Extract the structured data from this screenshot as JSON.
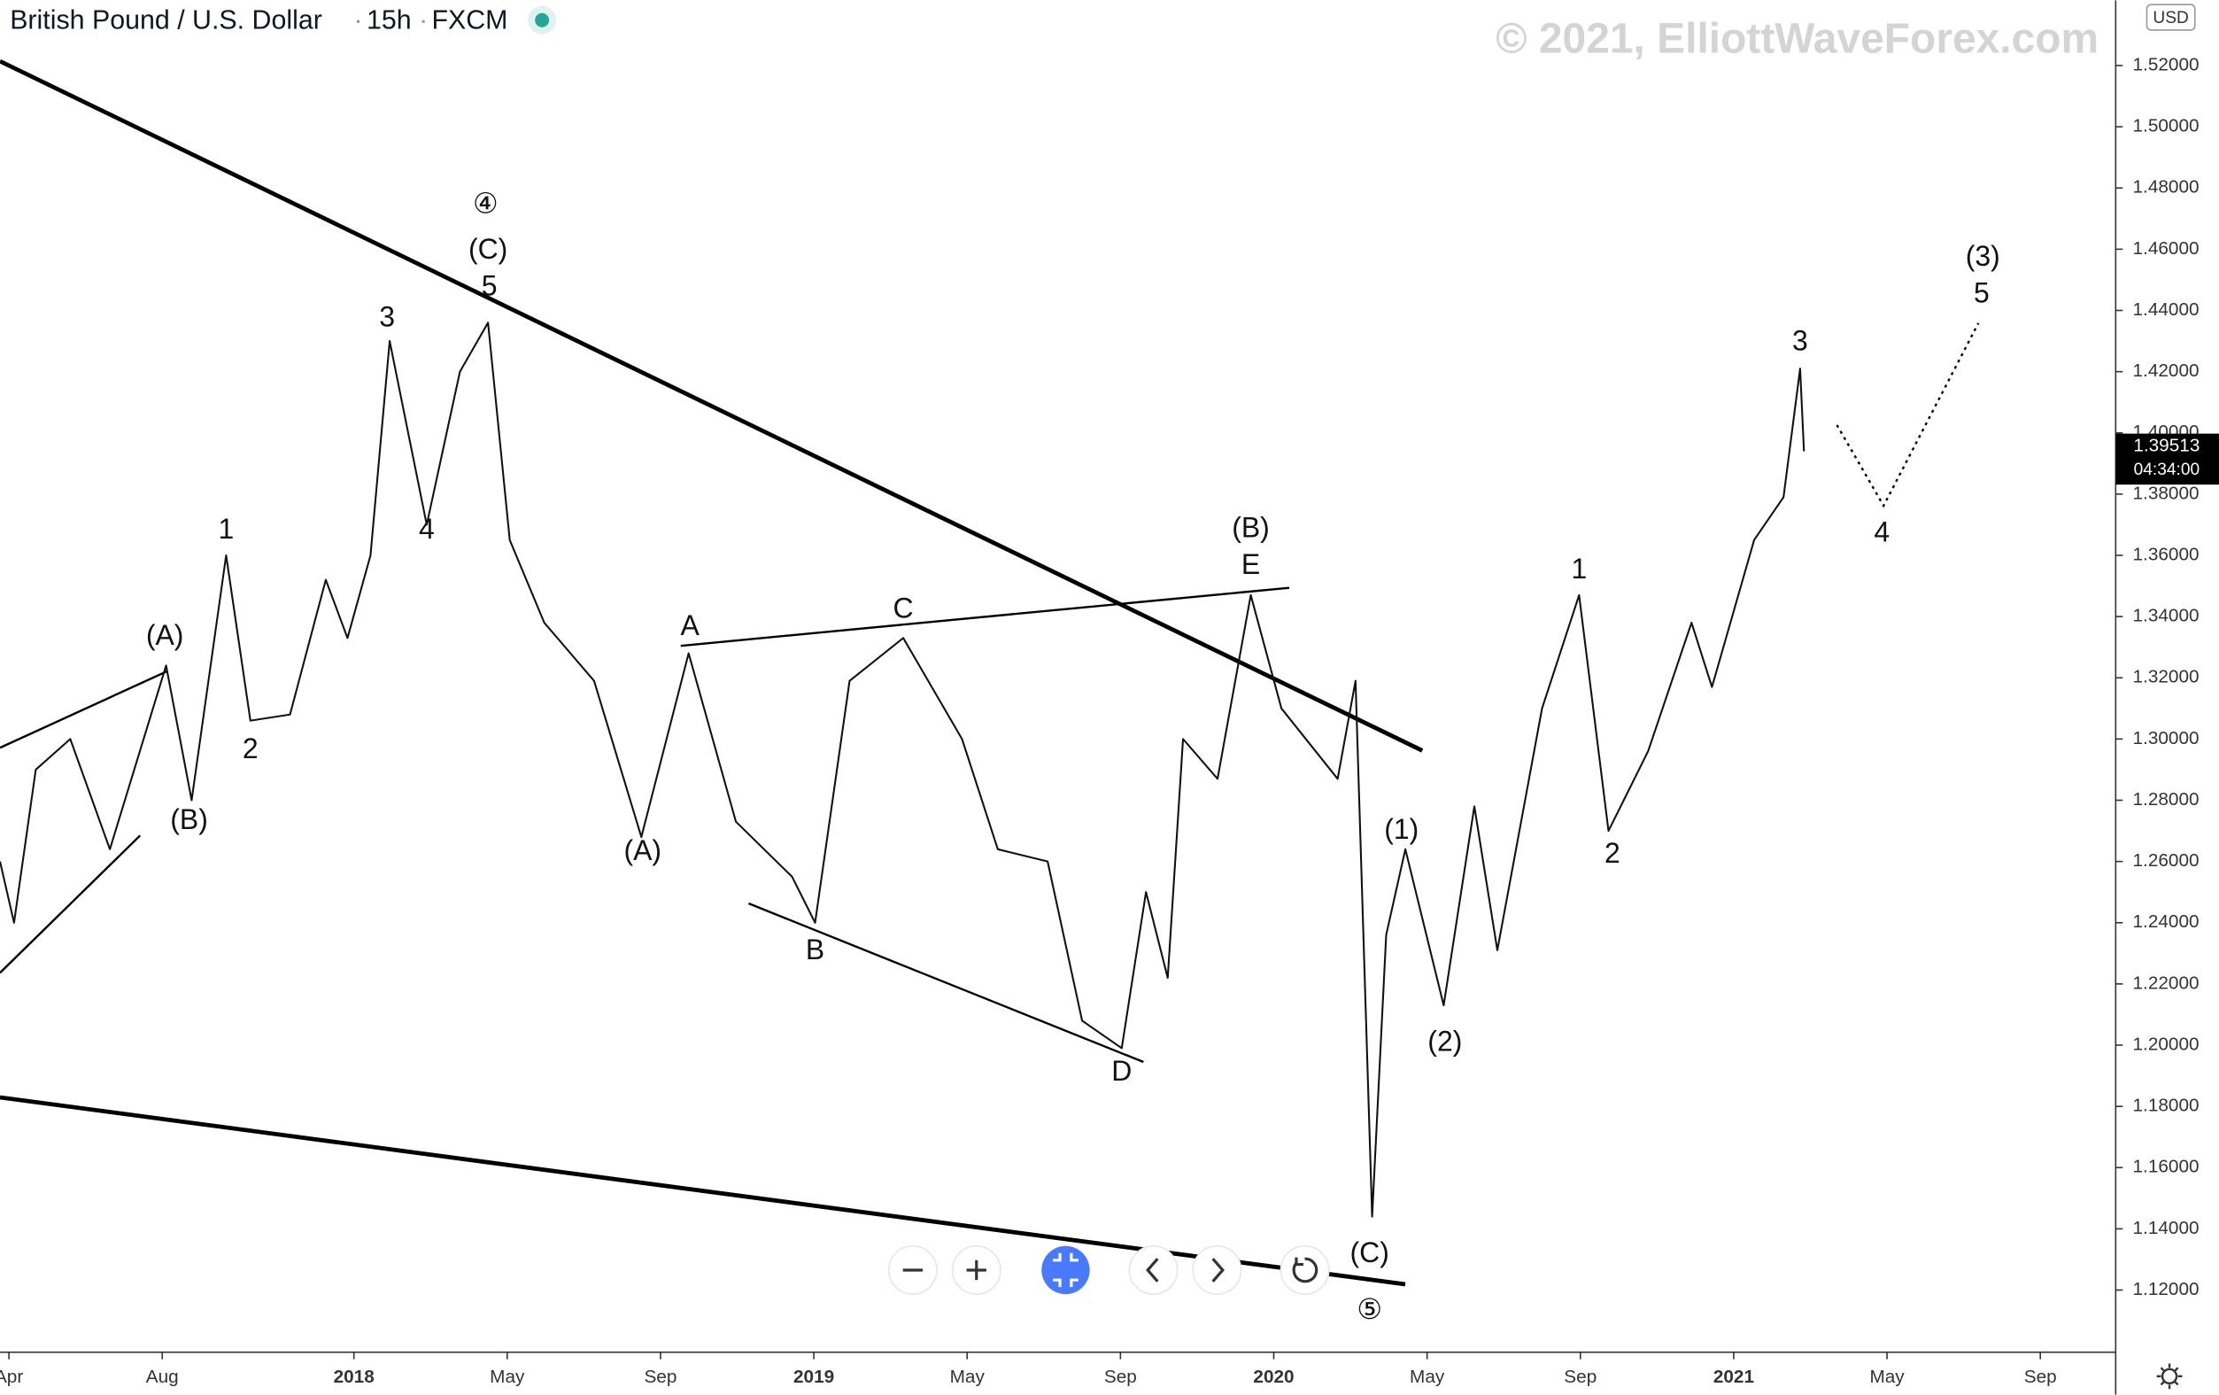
{
  "header": {
    "symbol": "British Pound / U.S. Dollar",
    "interval": "15h",
    "source": "FXCM"
  },
  "watermark": "© 2021, ElliottWaveForex.com",
  "currency": "USD",
  "last_price": 1.39513,
  "countdown": "04:34:00",
  "chart_data": {
    "type": "line",
    "xlim": [
      "2017-03-24",
      "2021-10-30"
    ],
    "ylim": [
      1.0997,
      1.5413
    ],
    "xticks": [
      {
        "value": "2017-04",
        "label": "Apr"
      },
      {
        "value": "2017-08",
        "label": "Aug"
      },
      {
        "value": "2018-01",
        "label": "2018"
      },
      {
        "value": "2018-05",
        "label": "May"
      },
      {
        "value": "2018-09",
        "label": "Sep"
      },
      {
        "value": "2019-01",
        "label": "2019"
      },
      {
        "value": "2019-05",
        "label": "May"
      },
      {
        "value": "2019-09",
        "label": "Sep"
      },
      {
        "value": "2020-01",
        "label": "2020"
      },
      {
        "value": "2020-05",
        "label": "May"
      },
      {
        "value": "2020-09",
        "label": "Sep"
      },
      {
        "value": "2021-01",
        "label": "2021"
      },
      {
        "value": "2021-05",
        "label": "May"
      },
      {
        "value": "2021-09",
        "label": "Sep"
      }
    ],
    "yticks": [
      {
        "value": 1.12,
        "label": "1.12000"
      },
      {
        "value": 1.14,
        "label": "1.14000"
      },
      {
        "value": 1.16,
        "label": "1.16000"
      },
      {
        "value": 1.18,
        "label": "1.18000"
      },
      {
        "value": 1.2,
        "label": "1.20000"
      },
      {
        "value": 1.22,
        "label": "1.22000"
      },
      {
        "value": 1.24,
        "label": "1.24000"
      },
      {
        "value": 1.26,
        "label": "1.26000"
      },
      {
        "value": 1.28,
        "label": "1.28000"
      },
      {
        "value": 1.3,
        "label": "1.30000"
      },
      {
        "value": 1.32,
        "label": "1.32000"
      },
      {
        "value": 1.34,
        "label": "1.34000"
      },
      {
        "value": 1.36,
        "label": "1.36000"
      },
      {
        "value": 1.38,
        "label": "1.38000"
      },
      {
        "value": 1.4,
        "label": "1.40000"
      },
      {
        "value": 1.42,
        "label": "1.42000"
      },
      {
        "value": 1.44,
        "label": "1.44000"
      },
      {
        "value": 1.46,
        "label": "1.46000"
      },
      {
        "value": 1.48,
        "label": "1.48000"
      },
      {
        "value": 1.5,
        "label": "1.50000"
      },
      {
        "value": 1.52,
        "label": "1.52000"
      }
    ],
    "series": [
      {
        "color": "#111111",
        "x": [
          "2017-03-24",
          "2017-04-05",
          "2017-04-22",
          "2017-05-19",
          "2017-06-20",
          "2017-08-04",
          "2017-08-24",
          "2017-09-21",
          "2017-10-10",
          "2017-11-11",
          "2017-12-09",
          "2017-12-26",
          "2018-01-14",
          "2018-01-29",
          "2018-02-28",
          "2018-03-24",
          "2018-04-16",
          "2018-05-03",
          "2018-05-30",
          "2018-07-09",
          "2018-08-16",
          "2018-09-23",
          "2018-10-30",
          "2018-12-14",
          "2019-01-02",
          "2019-01-29",
          "2019-03-11",
          "2019-04-27",
          "2019-05-25",
          "2019-07-04",
          "2019-08-01",
          "2019-09-02",
          "2019-09-21",
          "2019-10-08",
          "2019-10-20",
          "2019-11-17",
          "2019-12-13",
          "2020-01-07",
          "2020-02-21",
          "2020-03-05",
          "2020-03-18",
          "2020-03-29",
          "2020-04-14",
          "2020-05-14",
          "2020-06-08",
          "2020-06-26",
          "2020-08-01",
          "2020-08-30",
          "2020-09-23",
          "2020-10-24",
          "2020-11-28",
          "2020-12-14",
          "2021-01-17",
          "2021-02-10",
          "2021-02-23",
          "2021-02-26"
        ],
        "values": [
          1.26,
          1.24,
          1.29,
          1.3,
          1.264,
          1.324,
          1.28,
          1.36,
          1.306,
          1.308,
          1.352,
          1.333,
          1.36,
          1.43,
          1.37,
          1.42,
          1.436,
          1.365,
          1.338,
          1.319,
          1.268,
          1.328,
          1.273,
          1.255,
          1.24,
          1.319,
          1.333,
          1.3,
          1.264,
          1.26,
          1.208,
          1.199,
          1.25,
          1.222,
          1.3,
          1.287,
          1.347,
          1.31,
          1.287,
          1.319,
          1.144,
          1.236,
          1.264,
          1.213,
          1.278,
          1.231,
          1.31,
          1.347,
          1.27,
          1.296,
          1.338,
          1.317,
          1.365,
          1.379,
          1.421,
          1.394
        ]
      }
    ],
    "annotations": [
      {
        "text": "④",
        "x": "2018-04-14",
        "y": 1.4742
      },
      {
        "text": "(C)",
        "x": "2018-04-16",
        "y": 1.4594
      },
      {
        "text": "5",
        "x": "2018-04-17",
        "y": 1.4474
      },
      {
        "text": "3",
        "x": "2018-01-27",
        "y": 1.4372
      },
      {
        "text": "4",
        "x": "2018-02-28",
        "y": 1.3679
      },
      {
        "text": "1",
        "x": "2017-09-21",
        "y": 1.3679
      },
      {
        "text": "2",
        "x": "2017-10-10",
        "y": 1.2962
      },
      {
        "text": "(A)",
        "x": "2017-08-03",
        "y": 1.3332
      },
      {
        "text": "(B)",
        "x": "2017-08-22",
        "y": 1.2731
      },
      {
        "text": "(A)",
        "x": "2018-08-17",
        "y": 1.2629
      },
      {
        "text": "A",
        "x": "2018-09-24",
        "y": 1.3364
      },
      {
        "text": "B",
        "x": "2019-01-02",
        "y": 1.2305
      },
      {
        "text": "C",
        "x": "2019-03-11",
        "y": 1.342
      },
      {
        "text": "D",
        "x": "2019-09-02",
        "y": 1.1908
      },
      {
        "text": "(B)",
        "x": "2019-12-13",
        "y": 1.3683
      },
      {
        "text": "E",
        "x": "2019-12-13",
        "y": 1.3563
      },
      {
        "text": "(C)",
        "x": "2020-03-16",
        "y": 1.1316
      },
      {
        "text": "⑤",
        "x": "2020-03-16",
        "y": 1.1131
      },
      {
        "text": "(1)",
        "x": "2020-04-11",
        "y": 1.2698
      },
      {
        "text": "(2)",
        "x": "2020-05-15",
        "y": 1.2005
      },
      {
        "text": "1",
        "x": "2020-08-30",
        "y": 1.3549
      },
      {
        "text": "2",
        "x": "2020-09-26",
        "y": 1.262
      },
      {
        "text": "3",
        "x": "2021-02-23",
        "y": 1.4294
      },
      {
        "text": "4",
        "x": "2021-04-27",
        "y": 1.3669
      },
      {
        "text": "(3)",
        "x": "2021-07-16",
        "y": 1.4571
      },
      {
        "text": "5",
        "x": "2021-07-15",
        "y": 1.4451
      }
    ]
  }
}
